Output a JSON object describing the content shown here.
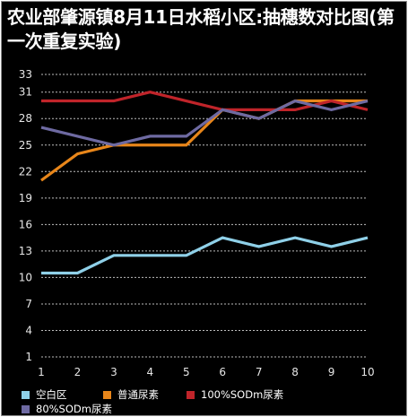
{
  "chart_data": {
    "type": "line",
    "title": "农业部肇源镇8月11日水稻小区:抽穗数对比图(第一次重复实验)",
    "x": [
      1,
      2,
      3,
      4,
      5,
      6,
      7,
      8,
      9,
      10
    ],
    "x_tick_labels": [
      "1",
      "2",
      "3",
      "4",
      "5",
      "6",
      "7",
      "8",
      "9",
      "10"
    ],
    "y_tick_labels": [
      "1",
      "4",
      "7",
      "10",
      "13",
      "16",
      "19",
      "22",
      "25",
      "28",
      "31",
      "33"
    ],
    "y_ticks": [
      1,
      4,
      7,
      10,
      13,
      16,
      19,
      22,
      25,
      28,
      31,
      33
    ],
    "ylim": [
      1,
      33
    ],
    "xlabel": "",
    "ylabel": "",
    "grid": true,
    "legend_position": "bottom",
    "series": [
      {
        "name": "空白区",
        "color": "#8fd0e8",
        "values": [
          10.5,
          10.5,
          12.5,
          12.5,
          12.5,
          14.5,
          13.5,
          14.5,
          13.5,
          14.5
        ]
      },
      {
        "name": "普通尿素",
        "color": "#e8861a",
        "values": [
          21,
          24,
          25,
          25,
          25,
          29,
          28,
          30,
          30,
          30
        ]
      },
      {
        "name": "100%SODm尿素",
        "color": "#c0242a",
        "values": [
          30,
          30,
          30,
          31,
          30,
          29,
          29,
          29,
          30,
          29
        ]
      },
      {
        "name": "80%SODm尿素",
        "color": "#6e6aa2",
        "values": [
          27,
          26,
          25,
          26,
          26,
          29,
          28,
          30,
          29,
          30
        ]
      }
    ]
  }
}
